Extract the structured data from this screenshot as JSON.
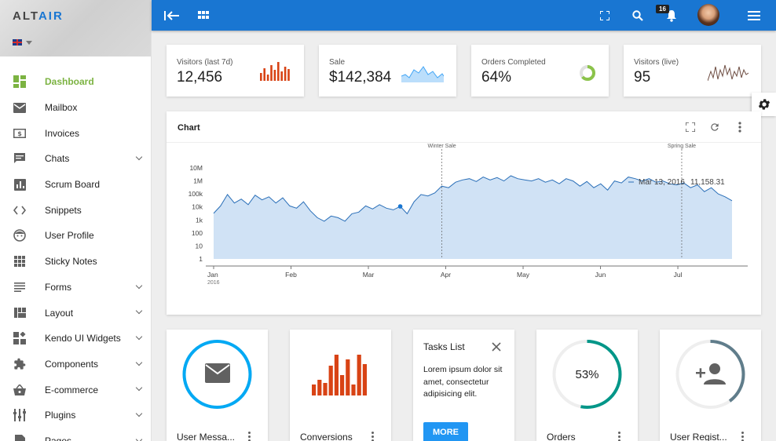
{
  "app": {
    "logo_part1": "ALT",
    "logo_part2": "AIR",
    "language": "en-gb"
  },
  "sidebar": {
    "items": [
      {
        "label": "Dashboard",
        "icon": "dashboard-icon",
        "active": true,
        "expandable": false
      },
      {
        "label": "Mailbox",
        "icon": "mail-icon",
        "active": false,
        "expandable": false
      },
      {
        "label": "Invoices",
        "icon": "invoice-icon",
        "active": false,
        "expandable": false
      },
      {
        "label": "Chats",
        "icon": "chat-icon",
        "active": false,
        "expandable": true
      },
      {
        "label": "Scrum Board",
        "icon": "scrum-icon",
        "active": false,
        "expandable": false
      },
      {
        "label": "Snippets",
        "icon": "code-icon",
        "active": false,
        "expandable": false
      },
      {
        "label": "User Profile",
        "icon": "face-icon",
        "active": false,
        "expandable": false
      },
      {
        "label": "Sticky Notes",
        "icon": "grid-icon",
        "active": false,
        "expandable": false
      },
      {
        "label": "Forms",
        "icon": "lines-icon",
        "active": false,
        "expandable": true
      },
      {
        "label": "Layout",
        "icon": "layout-icon",
        "active": false,
        "expandable": true
      },
      {
        "label": "Kendo UI Widgets",
        "icon": "widgets-icon",
        "active": false,
        "expandable": true
      },
      {
        "label": "Components",
        "icon": "puzzle-icon",
        "active": false,
        "expandable": true
      },
      {
        "label": "E-commerce",
        "icon": "basket-icon",
        "active": false,
        "expandable": true
      },
      {
        "label": "Plugins",
        "icon": "plugins-icon",
        "active": false,
        "expandable": true
      },
      {
        "label": "Pages",
        "icon": "page-icon",
        "active": false,
        "expandable": true
      }
    ]
  },
  "topbar": {
    "notifications_count": "16",
    "accent": "#1976d2"
  },
  "stats": [
    {
      "label": "Visitors (last 7d)",
      "value": "12,456",
      "spark": "bars",
      "color": "#d84315"
    },
    {
      "label": "Sale",
      "value": "$142,384",
      "spark": "area",
      "color": "#64b5f6"
    },
    {
      "label": "Orders Completed",
      "value": "64%",
      "spark": "donut",
      "color": "#8bc34a",
      "fraction": 0.64
    },
    {
      "label": "Visitors (live)",
      "value": "95",
      "spark": "line",
      "color": "#795548"
    }
  ],
  "chart_card": {
    "title": "Chart",
    "tooltip_date": "Mar 13, 2016",
    "tooltip_value": "11,158.31"
  },
  "chart_data": {
    "type": "area",
    "scale": "log",
    "y_ticks": [
      "1",
      "10",
      "100",
      "1k",
      "10k",
      "100k",
      "1M",
      "10M"
    ],
    "x_ticks": [
      "Jan",
      "Feb",
      "Mar",
      "Apr",
      "May",
      "Jun",
      "Jul"
    ],
    "x_tick_year": "2016",
    "annotations": [
      {
        "label": "Winter Sale",
        "month": 2.95
      },
      {
        "label": "Spring Sale",
        "month": 6.05
      }
    ],
    "series": [
      {
        "color": "#2a6fb8",
        "fill": "#d0e2f5",
        "values": [
          3200,
          12000,
          90000,
          20000,
          40000,
          15000,
          80000,
          35000,
          60000,
          20000,
          50000,
          12000,
          8000,
          25000,
          5000,
          1500,
          800,
          2000,
          1500,
          800,
          3000,
          4000,
          12000,
          7000,
          15000,
          8000,
          6000,
          11000,
          3000,
          25000,
          90000,
          70000,
          120000,
          400000,
          300000,
          800000,
          1200000,
          1500000,
          900000,
          2000000,
          1200000,
          1800000,
          1000000,
          2500000,
          1500000,
          1200000,
          1000000,
          1500000,
          800000,
          1200000,
          600000,
          1500000,
          1000000,
          400000,
          900000,
          300000,
          600000,
          200000,
          1000000,
          700000,
          2000000,
          1500000,
          1000000,
          1500000,
          800000,
          1000000,
          600000,
          500000,
          700000,
          300000,
          500000,
          150000,
          300000,
          100000,
          60000,
          30000
        ]
      }
    ]
  },
  "widgets": [
    {
      "label": "User Messa...",
      "type": "ring-icon",
      "ring_color": "#03a9f4",
      "fraction": 1.0,
      "icon": "envelope-icon"
    },
    {
      "label": "Conversions",
      "type": "bars",
      "color": "#d84315"
    },
    {
      "title": "Tasks List",
      "body": "Lorem ipsum dolor sit amet, consectetur adipisicing elit.",
      "button": "MORE",
      "type": "tasks"
    },
    {
      "label": "Orders",
      "type": "ring-text",
      "ring_color": "#009688",
      "fraction": 0.53,
      "text": "53%"
    },
    {
      "label": "User Regist...",
      "type": "ring-icon",
      "ring_color": "#607d8b",
      "fraction": 0.4,
      "icon": "person-add-icon"
    }
  ]
}
